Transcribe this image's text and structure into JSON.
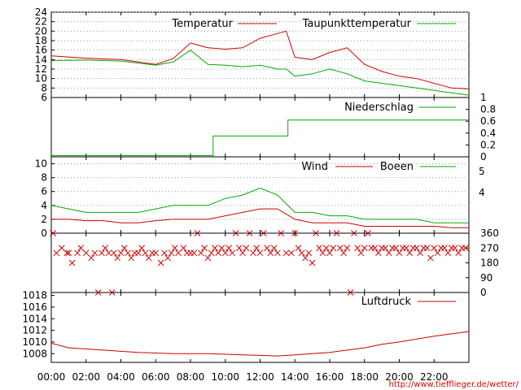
{
  "chart_data": [
    {
      "type": "line",
      "id": "temperature",
      "ylim": [
        6,
        24
      ],
      "y_ticks": [
        "6",
        "8",
        "10",
        "12",
        "14",
        "16",
        "18",
        "20",
        "22",
        "24"
      ],
      "grid": true,
      "legend_position": "top-right",
      "x": [
        "00:00",
        "02:00",
        "04:00",
        "06:00",
        "07:00",
        "08:00",
        "09:00",
        "10:00",
        "11:00",
        "12:00",
        "13:00",
        "13:30",
        "14:00",
        "15:00",
        "16:00",
        "17:00",
        "18:00",
        "19:00",
        "20:00",
        "21:00",
        "22:00",
        "23:00",
        "24:00"
      ],
      "series": [
        {
          "name": "Temperatur",
          "color": "#cc0000",
          "values": [
            14.8,
            14.3,
            14.0,
            13.0,
            14.2,
            17.5,
            16.5,
            16.2,
            16.5,
            18.5,
            19.5,
            20.0,
            14.5,
            14.0,
            15.5,
            16.5,
            13.0,
            11.5,
            10.5,
            10.0,
            9.0,
            8.0,
            7.8
          ]
        },
        {
          "name": "Taupunkttemperatur",
          "color": "#00aa00",
          "values": [
            13.8,
            13.9,
            13.7,
            12.8,
            13.5,
            16.0,
            13.0,
            12.8,
            12.5,
            12.8,
            12.0,
            12.0,
            10.5,
            11.0,
            12.0,
            11.0,
            9.5,
            9.0,
            8.5,
            8.0,
            7.5,
            7.0,
            6.5
          ]
        }
      ]
    },
    {
      "type": "line",
      "id": "precipitation",
      "ylim": [
        0,
        1
      ],
      "y_ticks": [
        "0",
        "0.2",
        "0.4",
        "0.6",
        "0.8",
        "1"
      ],
      "legend_position": "top-right",
      "x": [
        0,
        9.3,
        9.3,
        13.6,
        13.6,
        24
      ],
      "series": [
        {
          "name": "Niederschlag",
          "color": "#00aa00",
          "values": [
            0.02,
            0.02,
            0.35,
            0.35,
            0.62,
            0.62
          ]
        }
      ]
    },
    {
      "type": "line",
      "id": "wind",
      "ylim": [
        0,
        11
      ],
      "y_ticks": [
        "0",
        "2",
        "4",
        "6",
        "8",
        "10"
      ],
      "right_ticks": [
        "4",
        "5"
      ],
      "grid": true,
      "legend_position": "top-right",
      "x": [
        0,
        1,
        2,
        3,
        4,
        5,
        6,
        7,
        8,
        9,
        10,
        11,
        12,
        13,
        14,
        15,
        16,
        17,
        18,
        19,
        20,
        21,
        22,
        23,
        24
      ],
      "series": [
        {
          "name": "Wind",
          "color": "#cc0000",
          "values": [
            2.0,
            2.0,
            1.8,
            1.8,
            1.5,
            1.5,
            1.8,
            2.0,
            2.0,
            2.0,
            2.5,
            3.0,
            3.5,
            3.5,
            2.0,
            1.5,
            1.5,
            1.5,
            1.0,
            1.0,
            1.0,
            1.0,
            1.0,
            0.8,
            0.8
          ]
        },
        {
          "name": "Boeen",
          "color": "#00aa00",
          "values": [
            4.0,
            3.5,
            3.0,
            3.0,
            3.0,
            3.0,
            3.5,
            4.0,
            4.0,
            4.0,
            5.0,
            5.5,
            6.5,
            5.5,
            3.0,
            3.0,
            2.5,
            2.5,
            2.0,
            2.0,
            2.0,
            2.0,
            1.5,
            1.5,
            1.5
          ]
        }
      ]
    },
    {
      "type": "scatter",
      "id": "wind-direction",
      "ylim": [
        0,
        360
      ],
      "y_ticks": [
        "0",
        "90",
        "180",
        "270",
        "360"
      ],
      "marker": "x",
      "series": [
        {
          "color": "#cc0000",
          "points": [
            [
              0.1,
              360
            ],
            [
              0.3,
              240
            ],
            [
              0.6,
              270
            ],
            [
              0.9,
              240
            ],
            [
              1.0,
              240
            ],
            [
              1.2,
              180
            ],
            [
              1.5,
              240
            ],
            [
              1.7,
              270
            ],
            [
              2.0,
              240
            ],
            [
              2.3,
              210
            ],
            [
              2.5,
              240
            ],
            [
              2.7,
              0
            ],
            [
              2.9,
              240
            ],
            [
              3.1,
              270
            ],
            [
              3.3,
              240
            ],
            [
              3.5,
              0
            ],
            [
              3.6,
              240
            ],
            [
              3.8,
              210
            ],
            [
              4.0,
              240
            ],
            [
              4.2,
              270
            ],
            [
              4.4,
              240
            ],
            [
              4.6,
              210
            ],
            [
              4.8,
              240
            ],
            [
              5.0,
              240
            ],
            [
              5.2,
              270
            ],
            [
              5.4,
              240
            ],
            [
              5.6,
              210
            ],
            [
              5.8,
              240
            ],
            [
              6.0,
              240
            ],
            [
              6.3,
              180
            ],
            [
              6.5,
              240
            ],
            [
              6.7,
              210
            ],
            [
              6.9,
              240
            ],
            [
              7.1,
              270
            ],
            [
              7.3,
              240
            ],
            [
              7.6,
              270
            ],
            [
              7.8,
              240
            ],
            [
              8.0,
              240
            ],
            [
              8.2,
              240
            ],
            [
              8.4,
              360
            ],
            [
              8.6,
              240
            ],
            [
              8.8,
              270
            ],
            [
              9.0,
              210
            ],
            [
              9.2,
              240
            ],
            [
              9.4,
              270
            ],
            [
              9.6,
              240
            ],
            [
              9.8,
              270
            ],
            [
              10.0,
              240
            ],
            [
              10.2,
              270
            ],
            [
              10.4,
              240
            ],
            [
              10.6,
              360
            ],
            [
              10.8,
              270
            ],
            [
              11.0,
              240
            ],
            [
              11.2,
              270
            ],
            [
              11.4,
              360
            ],
            [
              11.6,
              240
            ],
            [
              11.8,
              270
            ],
            [
              12.0,
              240
            ],
            [
              12.2,
              360
            ],
            [
              12.4,
              270
            ],
            [
              12.6,
              240
            ],
            [
              12.8,
              270
            ],
            [
              13.0,
              240
            ],
            [
              13.2,
              360
            ],
            [
              13.5,
              240
            ],
            [
              13.8,
              240
            ],
            [
              14.0,
              360
            ],
            [
              14.2,
              270
            ],
            [
              14.4,
              240
            ],
            [
              14.6,
              210
            ],
            [
              14.8,
              240
            ],
            [
              15.0,
              180
            ],
            [
              15.2,
              360
            ],
            [
              15.4,
              270
            ],
            [
              15.6,
              240
            ],
            [
              15.8,
              270
            ],
            [
              16.0,
              240
            ],
            [
              16.2,
              270
            ],
            [
              16.4,
              360
            ],
            [
              16.6,
              270
            ],
            [
              16.8,
              240
            ],
            [
              17.0,
              270
            ],
            [
              17.2,
              0
            ],
            [
              17.4,
              360
            ],
            [
              17.6,
              270
            ],
            [
              17.8,
              240
            ],
            [
              18.0,
              270
            ],
            [
              18.2,
              360
            ],
            [
              18.4,
              270
            ],
            [
              18.6,
              270
            ],
            [
              18.8,
              240
            ],
            [
              19.0,
              270
            ],
            [
              19.2,
              270
            ],
            [
              19.4,
              240
            ],
            [
              19.6,
              270
            ],
            [
              19.8,
              270
            ],
            [
              20.0,
              240
            ],
            [
              20.2,
              270
            ],
            [
              20.4,
              270
            ],
            [
              20.6,
              240
            ],
            [
              20.8,
              270
            ],
            [
              21.0,
              270
            ],
            [
              21.2,
              240
            ],
            [
              21.4,
              270
            ],
            [
              21.6,
              270
            ],
            [
              21.8,
              210
            ],
            [
              22.0,
              270
            ],
            [
              22.2,
              240
            ],
            [
              22.4,
              270
            ],
            [
              22.6,
              270
            ],
            [
              22.8,
              240
            ],
            [
              23.0,
              270
            ],
            [
              23.2,
              270
            ],
            [
              23.4,
              240
            ],
            [
              23.6,
              270
            ],
            [
              23.8,
              270
            ]
          ]
        }
      ]
    },
    {
      "type": "line",
      "id": "pressure",
      "ylim": [
        1006.5,
        1018.5
      ],
      "y_ticks": [
        "1008",
        "1010",
        "1012",
        "1014",
        "1016",
        "1018"
      ],
      "legend_position": "top-right",
      "x": [
        0,
        1,
        2,
        3,
        4,
        5,
        6,
        7,
        8,
        9,
        10,
        11,
        12,
        13,
        14,
        15,
        16,
        17,
        18,
        19,
        20,
        21,
        22,
        23,
        24
      ],
      "x_tick_labels": [
        "00:00",
        "02:00",
        "04:00",
        "06:00",
        "08:00",
        "10:00",
        "12:00",
        "14:00",
        "16:00",
        "18:00",
        "20:00",
        "22:00"
      ],
      "series": [
        {
          "name": "Luftdruck",
          "color": "#cc0000",
          "values": [
            1009.8,
            1009.0,
            1008.8,
            1008.6,
            1008.4,
            1008.2,
            1008.1,
            1008.0,
            1008.0,
            1008.0,
            1007.9,
            1007.8,
            1007.7,
            1007.6,
            1007.8,
            1008.0,
            1008.2,
            1008.6,
            1009.0,
            1009.6,
            1010.0,
            1010.5,
            1011.0,
            1011.4,
            1011.8
          ]
        }
      ]
    }
  ],
  "credit": "http://www.tiefflieger.de/wetter/"
}
